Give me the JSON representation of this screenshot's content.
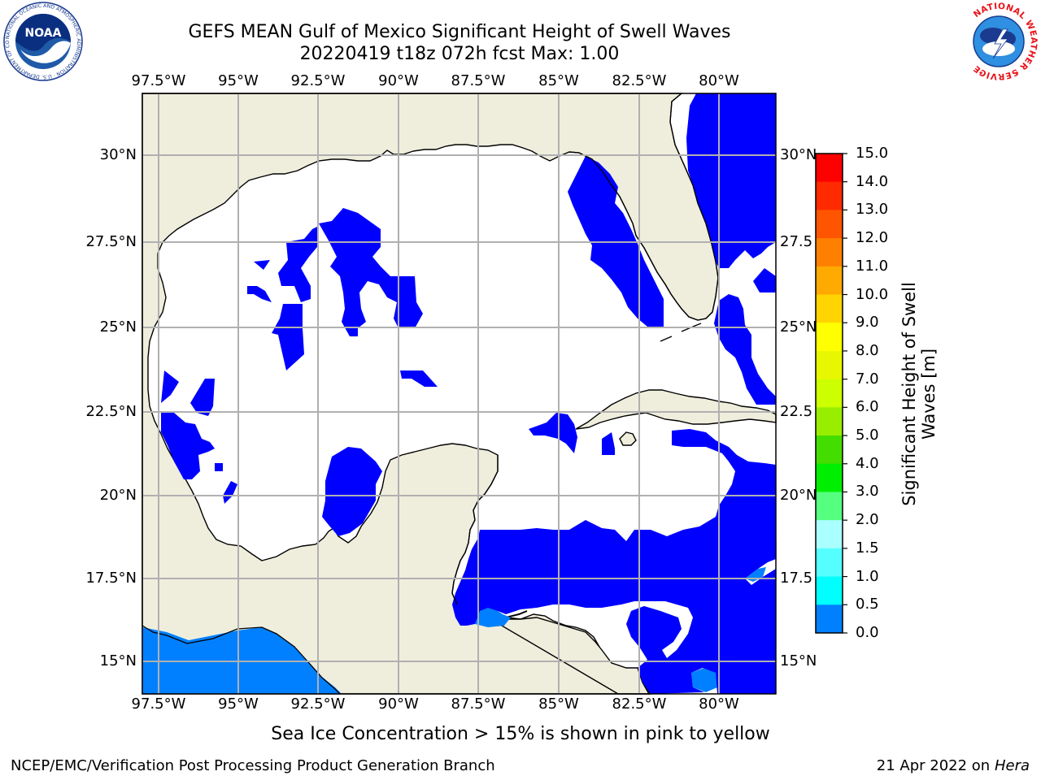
{
  "title_line1": "GEFS MEAN Gulf of Mexico Significant Height of Swell Waves",
  "title_line2": "20220419 t18z 072h fcst   Max: 1.00",
  "lon_labels": [
    "97.5°W",
    "95°W",
    "92.5°W",
    "90°W",
    "87.5°W",
    "85°W",
    "82.5°W",
    "80°W"
  ],
  "lat_labels_left": [
    "30°N",
    "27.5°N",
    "25°N",
    "22.5°N",
    "20°N",
    "17.5°N",
    "15°N"
  ],
  "lat_labels_right": [
    "30°N",
    "27.5",
    "25°N",
    "22.5",
    "20°N",
    "17.5",
    "15°N"
  ],
  "colorbar": {
    "title": "Significant Height of Swell\nWaves [m]",
    "labels": [
      "15.0",
      "14.0",
      "13.0",
      "12.0",
      "11.0",
      "10.0",
      "9.0",
      "8.0",
      "7.0",
      "6.0",
      "5.0",
      "4.0",
      "3.0",
      "2.0",
      "1.5",
      "1.0",
      "0.5",
      "0.0"
    ],
    "colors": [
      "#ff0000",
      "#ff2a00",
      "#ff5500",
      "#ff8000",
      "#ffaa00",
      "#ffd400",
      "#ffff00",
      "#e8f700",
      "#ccff00",
      "#99ee00",
      "#44dd00",
      "#00ee00",
      "#55ff80",
      "#aaffff",
      "#55ffff",
      "#00ffff",
      "#0080ff",
      "#0000ff"
    ]
  },
  "note": "Sea Ice Concentration > 15% is shown in pink to yellow",
  "footer_left": "NCEP/EMC/Verification Post Processing Product Generation Branch",
  "footer_date": "21 Apr 2022 on ",
  "footer_machine": "Hera",
  "logos": {
    "noaa_text": "NOAA",
    "noaa_ring_text": "NATIONAL OCEANIC AND ATMOSPHERIC ADMINISTRATION · U.S. DEPARTMENT OF COMMERCE",
    "nws_ring_text": "NATIONAL WEATHER SERVICE"
  },
  "colors": {
    "land": "#efeedd",
    "ocean_zero": "#0000ff",
    "ocean_half": "#0080ff",
    "grid": "#b0b0b0"
  }
}
